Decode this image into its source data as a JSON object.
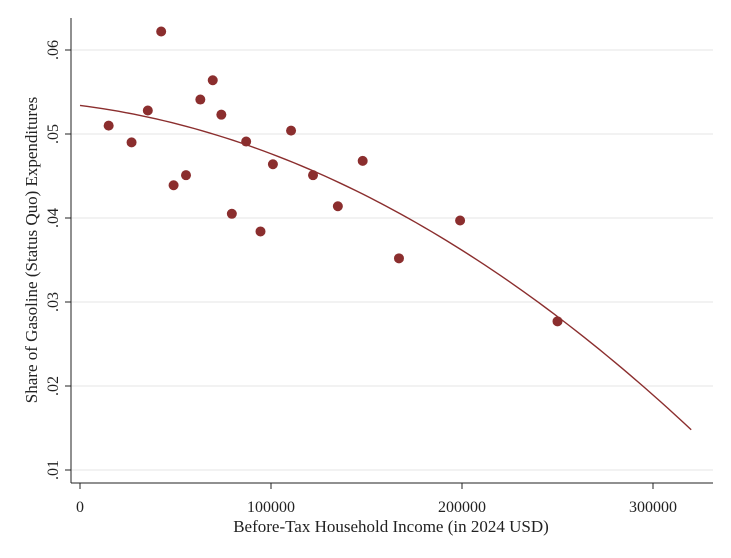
{
  "chart_data": {
    "type": "scatter",
    "title": "",
    "xlabel": "Before-Tax Household Income (in 2024 USD)",
    "ylabel": "Share of Gasoline (Status Quo) Expenditures",
    "xlim": [
      0,
      330000
    ],
    "ylim": [
      0.009,
      0.0655
    ],
    "xticks": [
      0,
      100000,
      200000,
      300000
    ],
    "xtick_labels": [
      "0",
      "100000",
      "200000",
      "300000"
    ],
    "yticks": [
      0.01,
      0.02,
      0.03,
      0.04,
      0.05,
      0.06
    ],
    "ytick_labels": [
      ".01",
      ".02",
      ".03",
      ".04",
      ".05",
      ".06"
    ],
    "grid": "horizontal",
    "marker_color": "#8b2e2e",
    "line_color": "#8b2e2e",
    "points": [
      {
        "x": 15000,
        "y": 0.051
      },
      {
        "x": 27000,
        "y": 0.049
      },
      {
        "x": 35500,
        "y": 0.0528
      },
      {
        "x": 42500,
        "y": 0.0622
      },
      {
        "x": 49000,
        "y": 0.0439
      },
      {
        "x": 55500,
        "y": 0.0451
      },
      {
        "x": 63000,
        "y": 0.0541
      },
      {
        "x": 69500,
        "y": 0.0564
      },
      {
        "x": 74000,
        "y": 0.0523
      },
      {
        "x": 79500,
        "y": 0.0405
      },
      {
        "x": 87000,
        "y": 0.0491
      },
      {
        "x": 94500,
        "y": 0.0384
      },
      {
        "x": 101000,
        "y": 0.0464
      },
      {
        "x": 110500,
        "y": 0.0504
      },
      {
        "x": 122000,
        "y": 0.0451
      },
      {
        "x": 135000,
        "y": 0.0414
      },
      {
        "x": 148000,
        "y": 0.0468
      },
      {
        "x": 167000,
        "y": 0.0352
      },
      {
        "x": 199000,
        "y": 0.0397
      },
      {
        "x": 250000,
        "y": 0.0277
      }
    ],
    "fit_line": {
      "type": "quadratic",
      "x_range": [
        0,
        320000
      ],
      "coefficients": {
        "a": 0.0534,
        "b": -2.88e-08,
        "c": -2.87e-13
      }
    }
  }
}
